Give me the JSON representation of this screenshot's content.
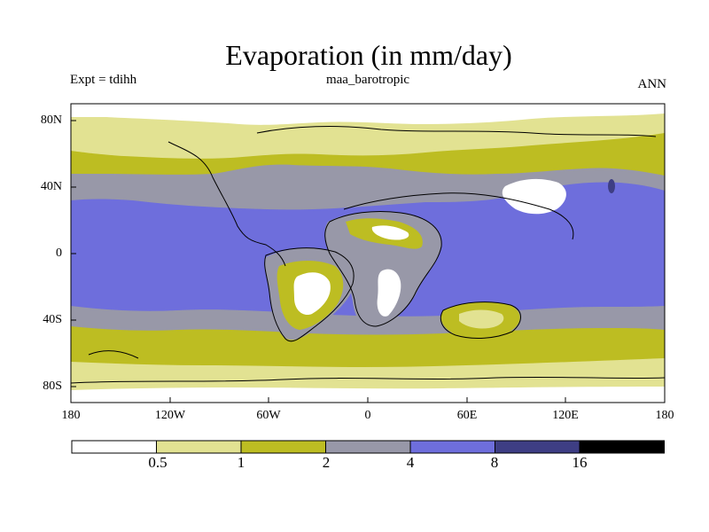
{
  "title": "Evaporation (in mm/day)",
  "experiment": "Expt = tdihh",
  "subtitle": "maa_barotropic",
  "season": "ANN",
  "lat_labels": [
    "80N",
    "40N",
    "0",
    "40S",
    "80S"
  ],
  "lon_labels": [
    "180",
    "120W",
    "60W",
    "0",
    "60E",
    "120E",
    "180"
  ],
  "colorbar": {
    "levels": [
      "0.5",
      "1",
      "2",
      "4",
      "8",
      "16"
    ],
    "colors": [
      "#ffffff",
      "#e2e292",
      "#bdbd22",
      "#9898a8",
      "#6e6edc",
      "#3e3e84",
      "#000000"
    ]
  },
  "map_colors": {
    "white": "#ffffff",
    "pale_yellow": "#e2e292",
    "olive": "#bdbd22",
    "gray": "#9898a8",
    "blue": "#6e6edc",
    "dark_blue": "#3e3e84",
    "coast": "#000000"
  }
}
